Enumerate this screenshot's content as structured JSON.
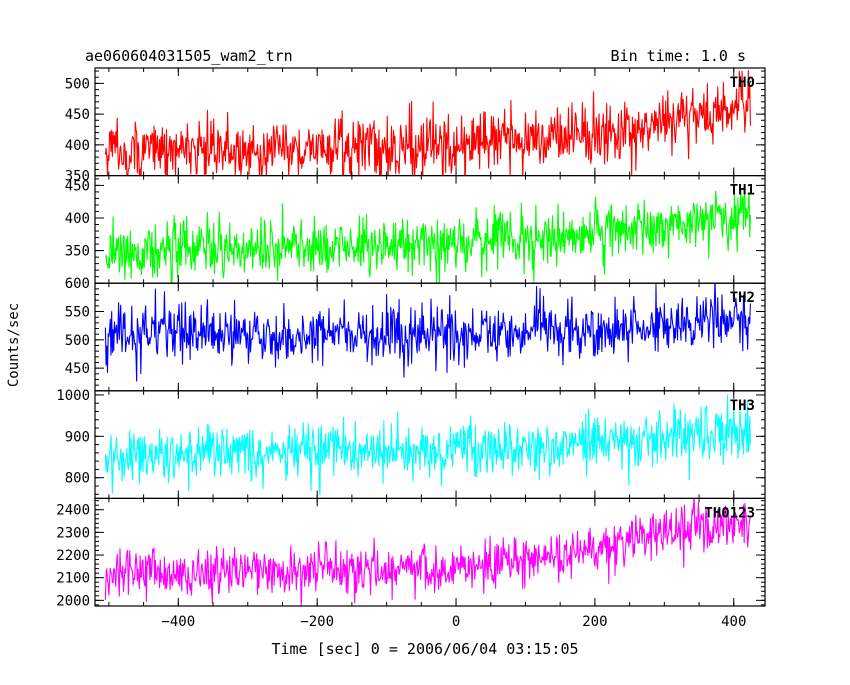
{
  "header": {
    "title": "ae060604031505_wam2_trn",
    "bin_time": "Bin time: 1.0 s"
  },
  "chart_data": {
    "type": "line",
    "title": "ae060604031505_wam2_trn",
    "xlabel": "Time [sec] 0 = 2006/06/04 03:15:05",
    "ylabel": "Counts/sec",
    "xlim": [
      -520,
      445
    ],
    "x_range_data": [
      -505,
      424
    ],
    "x_step": 1.0,
    "x_ticks": [
      -400,
      -200,
      0,
      200,
      400
    ],
    "x_tick_labels": [
      "−400",
      "−200",
      "0",
      "200",
      "400"
    ],
    "grid": false,
    "panels": [
      {
        "name": "TH0",
        "color": "#ff0000",
        "ylim": [
          350,
          525
        ],
        "y_ticks": [
          350,
          400,
          450,
          500
        ],
        "y_tick_labels": [
          "350",
          "400",
          "450",
          "500"
        ],
        "trend": [
          [
            -505,
            390
          ],
          [
            -300,
            392
          ],
          [
            0,
            398
          ],
          [
            200,
            420
          ],
          [
            424,
            460
          ]
        ],
        "noise_sd": 25
      },
      {
        "name": "TH1",
        "color": "#00ff00",
        "ylim": [
          300,
          465
        ],
        "y_ticks": [
          350,
          400,
          450
        ],
        "y_tick_labels": [
          "350",
          "400",
          "450"
        ],
        "trend": [
          [
            -505,
            350
          ],
          [
            -300,
            352
          ],
          [
            0,
            362
          ],
          [
            200,
            375
          ],
          [
            424,
            405
          ]
        ],
        "noise_sd": 22
      },
      {
        "name": "TH2",
        "color": "#0000ff",
        "ylim": [
          410,
          600
        ],
        "y_ticks": [
          450,
          500,
          550,
          600
        ],
        "y_tick_labels": [
          "450",
          "500",
          "550",
          "600"
        ],
        "trend": [
          [
            -505,
            515
          ],
          [
            -300,
            508
          ],
          [
            0,
            510
          ],
          [
            200,
            520
          ],
          [
            424,
            540
          ]
        ],
        "noise_sd": 25
      },
      {
        "name": "TH3",
        "color": "#00ffff",
        "ylim": [
          750,
          1010
        ],
        "y_ticks": [
          800,
          900,
          1000
        ],
        "y_tick_labels": [
          "800",
          "900",
          "1000"
        ],
        "trend": [
          [
            -505,
            855
          ],
          [
            -300,
            860
          ],
          [
            0,
            865
          ],
          [
            200,
            885
          ],
          [
            424,
            915
          ]
        ],
        "noise_sd": 33
      },
      {
        "name": "TH0123",
        "color": "#ff00ff",
        "ylim": [
          1975,
          2450
        ],
        "y_ticks": [
          2000,
          2100,
          2200,
          2300,
          2400
        ],
        "y_tick_labels": [
          "2000",
          "2100",
          "2200",
          "2300",
          "2400"
        ],
        "trend": [
          [
            -505,
            2120
          ],
          [
            -300,
            2125
          ],
          [
            0,
            2150
          ],
          [
            200,
            2220
          ],
          [
            424,
            2350
          ]
        ],
        "noise_sd": 55
      }
    ]
  }
}
